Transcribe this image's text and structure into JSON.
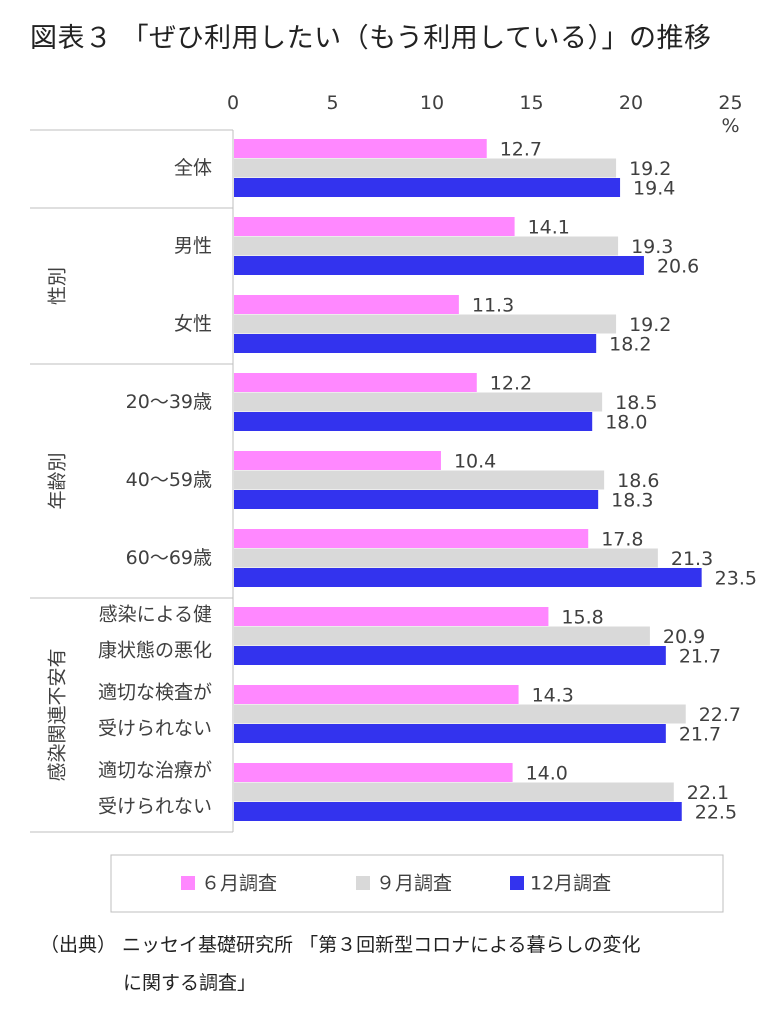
{
  "title": "図表３ 「ぜひ利用したい（もう利用している）」の推移",
  "source_line1": "（出典） ニッセイ基礎研究所 「第３回新型コロナによる暮らしの変化",
  "source_line2": "に関する調査」",
  "colors": {
    "jun": "#ff88ff",
    "sep": "#d9d9d9",
    "dec": "#3333ee",
    "axis": "#bfbfbf",
    "text": "#404040"
  },
  "chart_data": {
    "type": "bar",
    "orientation": "horizontal",
    "unit": "%",
    "xlim": [
      0,
      25
    ],
    "xticks": [
      0,
      5,
      10,
      15,
      20,
      25
    ],
    "legend_position": "bottom",
    "categories": [
      {
        "label": [
          "全体"
        ],
        "group": ""
      },
      {
        "label": [
          "男性"
        ],
        "group": "性別"
      },
      {
        "label": [
          "女性"
        ],
        "group": "性別"
      },
      {
        "label": [
          "20～39歳"
        ],
        "group": "年齢別"
      },
      {
        "label": [
          "40～59歳"
        ],
        "group": "年齢別"
      },
      {
        "label": [
          "60～69歳"
        ],
        "group": "年齢別"
      },
      {
        "label": [
          "感染による健",
          "康状態の悪化"
        ],
        "group": "感染関連不安有"
      },
      {
        "label": [
          "適切な検査が",
          "受けられない"
        ],
        "group": "感染関連不安有"
      },
      {
        "label": [
          "適切な治療が",
          "受けられない"
        ],
        "group": "感染関連不安有"
      }
    ],
    "groups": [
      {
        "name": "性別",
        "start": 1,
        "end": 2
      },
      {
        "name": "年齢別",
        "start": 3,
        "end": 5
      },
      {
        "name": "感染関連不安有",
        "start": 6,
        "end": 8
      }
    ],
    "series": [
      {
        "name": "６月調査",
        "color": "#ff88ff",
        "values": [
          12.7,
          14.1,
          11.3,
          12.2,
          10.4,
          17.8,
          15.8,
          14.3,
          14.0
        ]
      },
      {
        "name": "９月調査",
        "color": "#d9d9d9",
        "values": [
          19.2,
          19.3,
          19.2,
          18.5,
          18.6,
          21.3,
          20.9,
          22.7,
          22.1
        ]
      },
      {
        "name": "12月調査",
        "color": "#3333ee",
        "values": [
          19.4,
          20.6,
          18.2,
          18.0,
          18.3,
          23.5,
          21.7,
          21.7,
          22.5
        ]
      }
    ]
  }
}
